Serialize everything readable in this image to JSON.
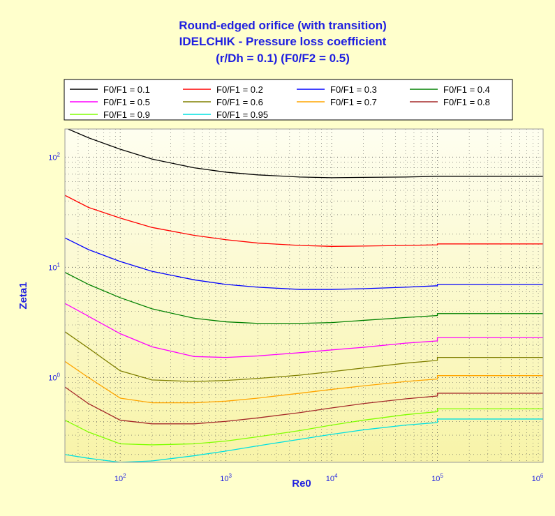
{
  "chart_data": {
    "type": "line",
    "title": [
      "Round-edged orifice (with transition)",
      "IDELCHIK - Pressure loss coefficient",
      "(r/Dh = 0.1) (F0/F2 = 0.5)"
    ],
    "xlabel": "Re0",
    "ylabel": "Zeta1",
    "xscale": "log",
    "yscale": "log",
    "xlim": [
      30,
      1000000
    ],
    "ylim": [
      0.17,
      180
    ],
    "grid": true,
    "legend_position": "top",
    "x_ticks": [
      {
        "value": 100,
        "base": "10",
        "exp": "2"
      },
      {
        "value": 1000,
        "base": "10",
        "exp": "3"
      },
      {
        "value": 10000,
        "base": "10",
        "exp": "4"
      },
      {
        "value": 100000,
        "base": "10",
        "exp": "5"
      },
      {
        "value": 1000000,
        "base": "10",
        "exp": "6"
      }
    ],
    "y_ticks": [
      {
        "value": 1,
        "base": "10",
        "exp": "0"
      },
      {
        "value": 10,
        "base": "10",
        "exp": "1"
      },
      {
        "value": 100,
        "base": "10",
        "exp": "2"
      }
    ],
    "x": [
      30,
      50,
      100,
      200,
      500,
      1000,
      2000,
      5000,
      10000,
      20000,
      50000,
      99999,
      100001,
      200000,
      500000,
      1000000
    ],
    "series": [
      {
        "name": "F0/F1 = 0.1",
        "color": "#000000",
        "values": [
          185,
          150,
          118,
          96,
          80,
          73,
          69,
          66,
          65,
          65.5,
          66,
          67,
          67,
          67,
          67,
          67
        ]
      },
      {
        "name": "F0/F1 = 0.2",
        "color": "#ff0000",
        "values": [
          45,
          35,
          28,
          23,
          19.5,
          17.8,
          16.6,
          15.8,
          15.5,
          15.6,
          15.8,
          16,
          16.3,
          16.3,
          16.3,
          16.3
        ]
      },
      {
        "name": "F0/F1 = 0.3",
        "color": "#0000ff",
        "values": [
          18.5,
          14.5,
          11.3,
          9.2,
          7.7,
          7.0,
          6.6,
          6.3,
          6.3,
          6.4,
          6.6,
          6.8,
          7.0,
          7.0,
          7.0,
          7.0
        ]
      },
      {
        "name": "F0/F1 = 0.4",
        "color": "#008000",
        "values": [
          9.0,
          7.0,
          5.3,
          4.2,
          3.45,
          3.2,
          3.1,
          3.1,
          3.15,
          3.3,
          3.5,
          3.65,
          3.8,
          3.8,
          3.8,
          3.8
        ]
      },
      {
        "name": "F0/F1 = 0.5",
        "color": "#ff00ff",
        "values": [
          4.7,
          3.6,
          2.5,
          1.9,
          1.55,
          1.52,
          1.57,
          1.68,
          1.78,
          1.88,
          2.05,
          2.15,
          2.3,
          2.3,
          2.3,
          2.3
        ]
      },
      {
        "name": "F0/F1 = 0.6",
        "color": "#808000",
        "values": [
          2.6,
          1.85,
          1.15,
          0.95,
          0.92,
          0.94,
          0.98,
          1.05,
          1.13,
          1.22,
          1.35,
          1.43,
          1.52,
          1.52,
          1.52,
          1.52
        ]
      },
      {
        "name": "F0/F1 = 0.7",
        "color": "#ffa500",
        "values": [
          1.4,
          1.0,
          0.65,
          0.59,
          0.59,
          0.61,
          0.65,
          0.72,
          0.78,
          0.84,
          0.92,
          0.97,
          1.04,
          1.04,
          1.04,
          1.04
        ]
      },
      {
        "name": "F0/F1 = 0.8",
        "color": "#a52a2a",
        "values": [
          0.82,
          0.58,
          0.41,
          0.38,
          0.38,
          0.4,
          0.43,
          0.48,
          0.53,
          0.58,
          0.64,
          0.68,
          0.72,
          0.72,
          0.72,
          0.72
        ]
      },
      {
        "name": "F0/F1 = 0.9",
        "color": "#80ff00",
        "values": [
          0.41,
          0.32,
          0.25,
          0.245,
          0.25,
          0.265,
          0.29,
          0.33,
          0.37,
          0.41,
          0.46,
          0.49,
          0.52,
          0.52,
          0.52,
          0.52
        ]
      },
      {
        "name": "F0/F1 = 0.95",
        "color": "#00e0e0",
        "values": [
          0.2,
          0.185,
          0.17,
          0.175,
          0.195,
          0.215,
          0.24,
          0.275,
          0.305,
          0.335,
          0.37,
          0.39,
          0.42,
          0.42,
          0.42,
          0.42
        ]
      }
    ],
    "colors": {
      "background": "#ffffcc",
      "plot_top": "#fefef0",
      "plot_bottom": "#f8f4a8",
      "title": "#1f1fe0",
      "grid": "#555555"
    }
  }
}
